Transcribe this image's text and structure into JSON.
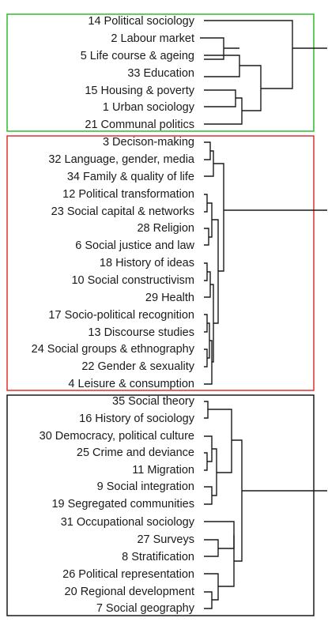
{
  "clusters": [
    {
      "name": "cluster-green",
      "color": "#2bbf2b",
      "leaves": [
        "14 Political sociology",
        "2 Labour market",
        "5 Life course & ageing",
        "33 Education",
        "15 Housing & poverty",
        "1 Urban sociology",
        "21 Communal politics"
      ]
    },
    {
      "name": "cluster-red",
      "color": "#e03030",
      "leaves": [
        "3 Decison-making",
        "32 Language, gender, media",
        "34 Family & quality of life",
        "12 Political transformation",
        "23 Social capital & networks",
        "28 Religion",
        "6 Social justice and law",
        "18 History of ideas",
        "10 Social constructivism",
        "29 Health",
        "17 Socio-political recognition",
        "13 Discourse studies",
        "24 Social groups & ethnography",
        "22 Gender & sexuality",
        "4 Leisure & consumption"
      ]
    },
    {
      "name": "cluster-black",
      "color": "#1a1a1a",
      "leaves": [
        "35 Social theory",
        "16 History of sociology",
        "30 Democracy, political culture",
        "25 Crime and deviance",
        "11 Migration",
        "9 Social integration",
        "19 Segregated communities",
        "31 Occupational sociology",
        "27 Surveys",
        "8 Stratification",
        "26 Political representation",
        "20 Regional development",
        "7 Social geography"
      ]
    }
  ]
}
